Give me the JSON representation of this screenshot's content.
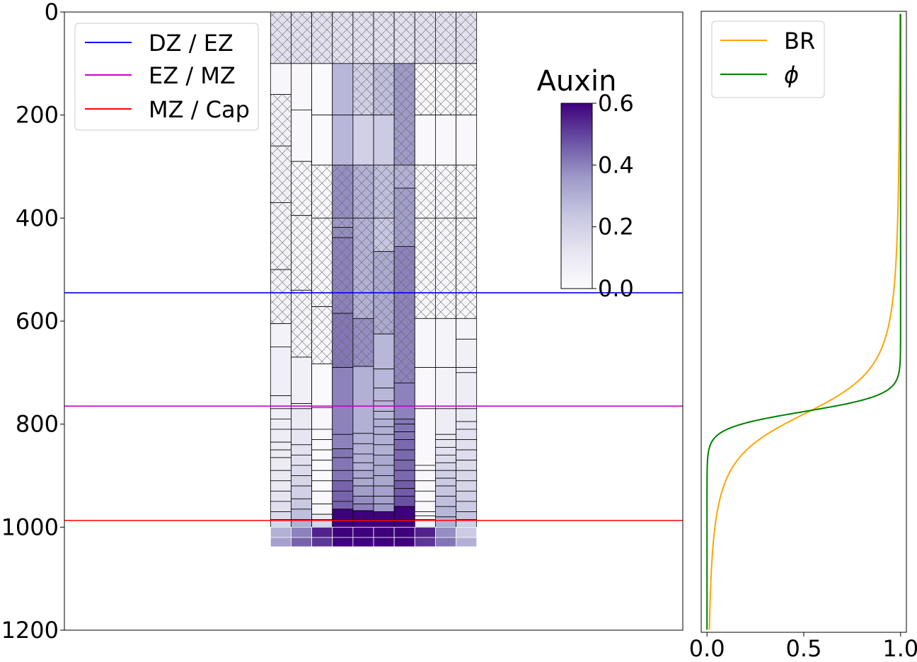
{
  "chart_data": [
    {
      "type": "heatmap",
      "subtype": "root-cell-grid",
      "ylim": [
        1200,
        0
      ],
      "xlim": [
        0,
        30
      ],
      "yticks": [
        0,
        200,
        400,
        600,
        800,
        1000,
        1200
      ],
      "ytick_labels": [
        "0",
        "200",
        "400",
        "600",
        "800",
        "1000",
        "1200"
      ],
      "column_x_range": [
        10,
        20
      ],
      "cell_columns": [
        {
          "boundaries": [
            0,
            100,
            160,
            260,
            370,
            500,
            605,
            650,
            745,
            770,
            790,
            810,
            835,
            850,
            865,
            890,
            910,
            930,
            950,
            970,
            985,
            1000,
            1020,
            1038
          ],
          "auxin": [
            0.14,
            0.03,
            0.06,
            0.06,
            0.05,
            0.05,
            0.05,
            0.07,
            0.07,
            0.07,
            0.08,
            0.08,
            0.08,
            0.09,
            0.09,
            0.1,
            0.1,
            0.12,
            0.14,
            0.16,
            0.17,
            0.3,
            0.34
          ],
          "hatched": [
            true,
            false,
            true,
            true,
            true,
            true,
            false,
            false,
            false,
            false,
            false,
            false,
            false,
            false,
            false,
            false,
            false,
            false,
            false,
            false,
            false,
            false,
            false
          ]
        },
        {
          "boundaries": [
            0,
            100,
            190,
            290,
            395,
            540,
            670,
            760,
            770,
            810,
            840,
            860,
            880,
            900,
            920,
            945,
            965,
            985,
            1000,
            1020,
            1038
          ],
          "auxin": [
            0.14,
            0.02,
            0.02,
            0.03,
            0.03,
            0.04,
            0.06,
            0.07,
            0.1,
            0.12,
            0.13,
            0.14,
            0.16,
            0.18,
            0.2,
            0.23,
            0.26,
            0.3,
            0.4,
            0.45
          ],
          "hatched": [
            true,
            false,
            false,
            true,
            true,
            true,
            false,
            false,
            false,
            false,
            false,
            false,
            false,
            false,
            false,
            false,
            false,
            false,
            false,
            false
          ]
        },
        {
          "boundaries": [
            0,
            100,
            200,
            297,
            400,
            572,
            683,
            768,
            810,
            830,
            850,
            870,
            890,
            910,
            930,
            955,
            975,
            985,
            1000,
            1020,
            1038
          ],
          "auxin": [
            0.14,
            0.01,
            0.01,
            0.02,
            0.02,
            0.02,
            0.01,
            0.02,
            0.02,
            0.02,
            0.01,
            0.01,
            0.01,
            0.01,
            0.02,
            0.03,
            0.1,
            0.18,
            0.55,
            0.52
          ],
          "hatched": [
            true,
            false,
            false,
            true,
            true,
            true,
            false,
            false,
            false,
            false,
            false,
            false,
            false,
            false,
            false,
            false,
            false,
            false,
            false,
            false
          ]
        },
        {
          "boundaries": [
            0,
            100,
            200,
            297,
            400,
            418,
            438,
            585,
            690,
            820,
            848,
            865,
            890,
            910,
            930,
            950,
            965,
            985,
            1000,
            1020,
            1038
          ],
          "auxin": [
            0.14,
            0.28,
            0.28,
            0.38,
            0.36,
            0.38,
            0.4,
            0.42,
            0.4,
            0.4,
            0.42,
            0.42,
            0.42,
            0.45,
            0.45,
            0.45,
            0.6,
            0.6,
            0.6,
            0.6
          ],
          "hatched": [
            true,
            false,
            false,
            true,
            true,
            true,
            true,
            true,
            false,
            false,
            false,
            false,
            false,
            false,
            false,
            false,
            false,
            false,
            false,
            false
          ]
        },
        {
          "boundaries": [
            0,
            100,
            200,
            297,
            400,
            595,
            688,
            818,
            838,
            858,
            875,
            890,
            905,
            920,
            940,
            955,
            968,
            985,
            1000,
            1020,
            1038
          ],
          "auxin": [
            0.14,
            0.2,
            0.2,
            0.3,
            0.3,
            0.38,
            0.3,
            0.3,
            0.3,
            0.3,
            0.3,
            0.32,
            0.32,
            0.35,
            0.38,
            0.4,
            0.6,
            0.6,
            0.6,
            0.6
          ],
          "hatched": [
            true,
            true,
            false,
            true,
            true,
            true,
            false,
            false,
            false,
            false,
            false,
            false,
            false,
            false,
            false,
            false,
            false,
            false,
            false,
            false
          ]
        },
        {
          "boundaries": [
            0,
            100,
            200,
            297,
            400,
            465,
            625,
            693,
            730,
            755,
            775,
            790,
            805,
            820,
            840,
            860,
            880,
            900,
            920,
            940,
            955,
            970,
            985,
            1000,
            1020,
            1038
          ],
          "auxin": [
            0.14,
            0.26,
            0.22,
            0.26,
            0.24,
            0.32,
            0.28,
            0.28,
            0.28,
            0.28,
            0.28,
            0.3,
            0.3,
            0.3,
            0.3,
            0.32,
            0.32,
            0.32,
            0.34,
            0.34,
            0.36,
            0.6,
            0.6,
            0.6,
            0.6
          ],
          "hatched": [
            true,
            true,
            false,
            true,
            true,
            true,
            false,
            false,
            false,
            false,
            false,
            false,
            false,
            false,
            false,
            false,
            false,
            false,
            false,
            false,
            false,
            false,
            false,
            false,
            false
          ]
        },
        {
          "boundaries": [
            0,
            100,
            297,
            342,
            455,
            720,
            790,
            800,
            815,
            830,
            850,
            870,
            890,
            910,
            925,
            940,
            960,
            985,
            1000,
            1020,
            1038
          ],
          "auxin": [
            0.14,
            0.36,
            0.3,
            0.35,
            0.4,
            0.4,
            0.42,
            0.42,
            0.42,
            0.44,
            0.44,
            0.44,
            0.44,
            0.46,
            0.46,
            0.48,
            0.6,
            0.6,
            0.6,
            0.6
          ],
          "hatched": [
            true,
            true,
            true,
            true,
            true,
            false,
            false,
            false,
            false,
            false,
            false,
            false,
            false,
            false,
            false,
            false,
            false,
            false,
            false,
            false
          ]
        },
        {
          "boundaries": [
            0,
            100,
            200,
            297,
            400,
            595,
            690,
            770,
            880,
            890,
            910,
            930,
            950,
            970,
            978,
            985,
            1000,
            1020,
            1038
          ],
          "auxin": [
            0.14,
            0.02,
            0.02,
            0.03,
            0.03,
            0.03,
            0.02,
            0.02,
            0.02,
            0.02,
            0.02,
            0.02,
            0.02,
            0.03,
            0.04,
            0.06,
            0.55,
            0.52
          ],
          "hatched": [
            true,
            true,
            false,
            true,
            true,
            false,
            false,
            false,
            false,
            false,
            false,
            false,
            false,
            false,
            false,
            false,
            false,
            false
          ]
        },
        {
          "boundaries": [
            0,
            100,
            200,
            297,
            400,
            595,
            690,
            770,
            820,
            830,
            845,
            860,
            875,
            890,
            905,
            920,
            940,
            960,
            980,
            1000,
            1020,
            1038
          ],
          "auxin": [
            0.14,
            0.03,
            0.02,
            0.03,
            0.03,
            0.04,
            0.05,
            0.08,
            0.1,
            0.12,
            0.14,
            0.16,
            0.18,
            0.2,
            0.22,
            0.24,
            0.26,
            0.28,
            0.3,
            0.38,
            0.42
          ],
          "hatched": [
            true,
            true,
            false,
            true,
            true,
            false,
            false,
            false,
            false,
            false,
            false,
            false,
            false,
            false,
            false,
            false,
            false,
            false,
            false,
            false,
            false
          ]
        },
        {
          "boundaries": [
            0,
            100,
            200,
            297,
            400,
            595,
            635,
            690,
            700,
            770,
            795,
            810,
            830,
            850,
            870,
            890,
            910,
            930,
            950,
            970,
            985,
            1000,
            1020,
            1038
          ],
          "auxin": [
            0.14,
            0.03,
            0.02,
            0.03,
            0.03,
            0.04,
            0.06,
            0.07,
            0.08,
            0.1,
            0.12,
            0.13,
            0.14,
            0.15,
            0.16,
            0.17,
            0.18,
            0.2,
            0.22,
            0.24,
            0.2,
            0.22,
            0.3
          ],
          "hatched": [
            true,
            true,
            false,
            true,
            true,
            false,
            false,
            false,
            false,
            false,
            false,
            false,
            false,
            false,
            false,
            false,
            false,
            false,
            false,
            false,
            false,
            false,
            false
          ]
        }
      ],
      "hlines": [
        {
          "y": 545,
          "color": "#0000ff",
          "label": "DZ / EZ"
        },
        {
          "y": 765,
          "color": "#cc00cc",
          "label": "EZ / MZ"
        },
        {
          "y": 987,
          "color": "#ff0000",
          "label": "MZ / Cap"
        }
      ],
      "legend": {
        "position": "top-left",
        "entries": [
          "DZ / EZ",
          "EZ / MZ",
          "MZ / Cap"
        ]
      },
      "colorbar": {
        "title": "Auxin",
        "range": [
          0.0,
          0.6
        ],
        "ticks": [
          0.0,
          0.2,
          0.4,
          0.6
        ],
        "tick_labels": [
          "0.0",
          "0.2",
          "0.4",
          "0.6"
        ],
        "colormap": "Purples",
        "low_color": "#fcfbfd",
        "high_color": "#3f007d"
      }
    },
    {
      "type": "line",
      "xlim": [
        -0.03,
        1.03
      ],
      "ylim": [
        1205,
        -5
      ],
      "xticks": [
        0.0,
        0.5,
        1.0
      ],
      "xtick_labels": [
        "0.0",
        "0.5",
        "1.0"
      ],
      "yticks_shown": false,
      "series": [
        {
          "name": "BR",
          "color": "#ffa500",
          "center": 780,
          "width": 95,
          "form": "rational"
        },
        {
          "name": "ϕ",
          "color": "#008000",
          "center": 775,
          "width": 16,
          "form": "logistic"
        }
      ],
      "legend": {
        "position": "top-left",
        "entries": [
          "BR",
          "ϕ"
        ]
      }
    }
  ]
}
